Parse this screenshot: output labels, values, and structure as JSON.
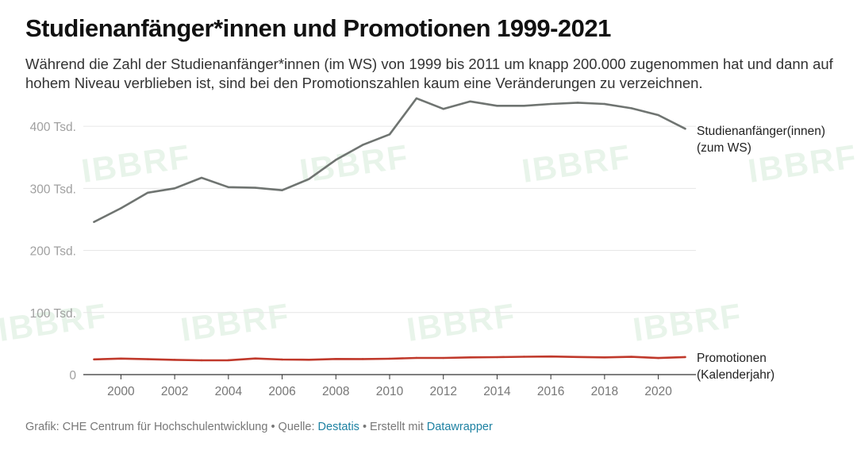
{
  "title": "Studienanfänger*innen und Promotionen 1999-2021",
  "subtitle": "Während die Zahl der Studienanfänger*innen (im WS) von 1999 bis 2011 um knapp 200.000 zugenommen hat und dann auf hohem Niveau verblieben ist, sind bei den Promotionszahlen kaum eine Veränderungen zu verzeichnen.",
  "footer": {
    "prefix": "Grafik: CHE Centrum für Hochschulentwicklung • Quelle: ",
    "source_link": "Destatis",
    "middle": " • Erstellt mit ",
    "tool_link": "Datawrapper"
  },
  "watermark": "IBBRF",
  "colors": {
    "studienanfaenger": "#6f7471",
    "promotionen": "#c0392b",
    "grid": "#e6e6e6",
    "baseline": "#333333"
  },
  "chart_data": {
    "type": "line",
    "title": "Studienanfänger*innen und Promotionen 1999-2021",
    "x": [
      1999,
      2000,
      2001,
      2002,
      2003,
      2004,
      2005,
      2006,
      2007,
      2008,
      2009,
      2010,
      2011,
      2012,
      2013,
      2014,
      2015,
      2016,
      2017,
      2018,
      2019,
      2020,
      2021
    ],
    "xticks": [
      2000,
      2002,
      2004,
      2006,
      2008,
      2010,
      2012,
      2014,
      2016,
      2018,
      2020
    ],
    "xlim": [
      1998.6,
      2021.4
    ],
    "ylim": [
      0,
      450000
    ],
    "yticks": [
      {
        "value": 0,
        "label": "0"
      },
      {
        "value": 100000,
        "label": "100 Tsd."
      },
      {
        "value": 200000,
        "label": "200 Tsd."
      },
      {
        "value": 300000,
        "label": "300 Tsd."
      },
      {
        "value": 400000,
        "label": "400 Tsd."
      }
    ],
    "series": [
      {
        "name": "Studienanfänger(innen)",
        "label_lines": [
          "Studienanfänger(innen)",
          "(zum WS)"
        ],
        "color": "#6f7471",
        "values": [
          246000,
          268000,
          293000,
          300000,
          317000,
          302000,
          301000,
          297000,
          315000,
          346000,
          370000,
          387000,
          445000,
          428000,
          440000,
          433000,
          433000,
          436000,
          438000,
          436000,
          429000,
          418000,
          396000
        ]
      },
      {
        "name": "Promotionen",
        "label_lines": [
          "Promotionen",
          "(Kalenderjahr)"
        ],
        "color": "#c0392b",
        "values": [
          24500,
          25800,
          24800,
          23800,
          23000,
          23200,
          25900,
          24300,
          23900,
          25200,
          25100,
          25600,
          26900,
          26800,
          27700,
          28100,
          28800,
          29200,
          28400,
          27800,
          28700,
          26700,
          28300
        ]
      }
    ]
  }
}
